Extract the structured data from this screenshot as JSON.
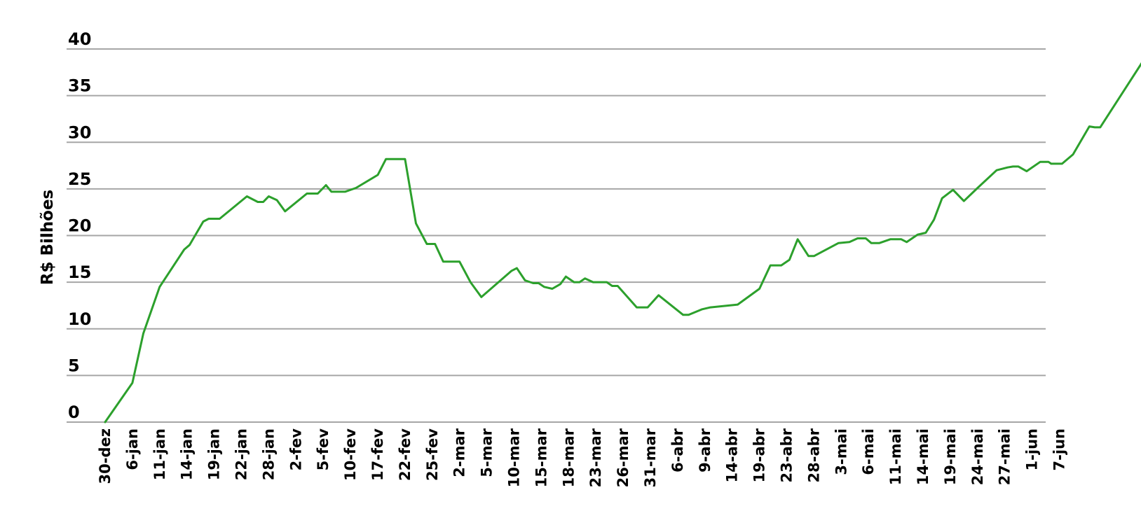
{
  "chart_data": {
    "type": "line",
    "title": "",
    "xlabel": "",
    "ylabel": "R$ Bilhões",
    "ylim": [
      0,
      40
    ],
    "yticks": [
      0,
      5,
      10,
      15,
      20,
      25,
      30,
      35,
      40
    ],
    "grid": true,
    "legend": "none",
    "colors": {
      "line": "#2ca02c",
      "grid": "#a6a6a6",
      "text": "#000000"
    },
    "categories": [
      "30-dez",
      "6-jan",
      "11-jan",
      "14-jan",
      "19-jan",
      "22-jan",
      "28-jan",
      "2-fev",
      "5-fev",
      "10-fev",
      "17-fev",
      "22-fev",
      "25-fev",
      "2-mar",
      "5-mar",
      "10-mar",
      "15-mar",
      "18-mar",
      "23-mar",
      "26-mar",
      "31-mar",
      "6-abr",
      "9-abr",
      "14-abr",
      "19-abr",
      "23-abr",
      "28-abr",
      "3-mai",
      "6-mai",
      "11-mai",
      "14-mai",
      "19-mai",
      "24-mai",
      "27-mai",
      "1-jun",
      "7-jun"
    ],
    "series": [
      {
        "values": [
          [
            0,
            0.0
          ],
          [
            1,
            4.2
          ],
          [
            1.4,
            9.5
          ],
          [
            2,
            14.5
          ],
          [
            2.9,
            18.5
          ],
          [
            3.1,
            19.0
          ],
          [
            3.6,
            21.5
          ],
          [
            3.8,
            21.8
          ],
          [
            4.2,
            21.8
          ],
          [
            5.2,
            24.2
          ],
          [
            5.6,
            23.6
          ],
          [
            5.8,
            23.6
          ],
          [
            6,
            24.2
          ],
          [
            6.3,
            23.8
          ],
          [
            6.6,
            22.6
          ],
          [
            7.4,
            24.5
          ],
          [
            7.8,
            24.5
          ],
          [
            8.1,
            25.4
          ],
          [
            8.3,
            24.7
          ],
          [
            8.8,
            24.7
          ],
          [
            9.2,
            25.1
          ],
          [
            10,
            26.5
          ],
          [
            10.3,
            28.2
          ],
          [
            11,
            28.2
          ],
          [
            11.4,
            21.3
          ],
          [
            11.8,
            19.1
          ],
          [
            12.1,
            19.1
          ],
          [
            12.4,
            17.2
          ],
          [
            13,
            17.2
          ],
          [
            13.4,
            15.0
          ],
          [
            13.8,
            13.4
          ],
          [
            14.9,
            16.2
          ],
          [
            15.1,
            16.5
          ],
          [
            15.4,
            15.2
          ],
          [
            15.7,
            14.9
          ],
          [
            15.9,
            14.9
          ],
          [
            16.1,
            14.5
          ],
          [
            16.4,
            14.3
          ],
          [
            16.7,
            14.8
          ],
          [
            16.9,
            15.6
          ],
          [
            17.2,
            15.0
          ],
          [
            17.4,
            15.0
          ],
          [
            17.6,
            15.4
          ],
          [
            17.9,
            15.0
          ],
          [
            18.4,
            15.0
          ],
          [
            18.6,
            14.6
          ],
          [
            18.8,
            14.6
          ],
          [
            19.5,
            12.3
          ],
          [
            19.9,
            12.3
          ],
          [
            20.3,
            13.6
          ],
          [
            21.2,
            11.5
          ],
          [
            21.4,
            11.5
          ],
          [
            21.9,
            12.1
          ],
          [
            22.2,
            12.3
          ],
          [
            23.2,
            12.6
          ],
          [
            24,
            14.3
          ],
          [
            24.4,
            16.8
          ],
          [
            24.8,
            16.8
          ],
          [
            25.1,
            17.4
          ],
          [
            25.4,
            19.6
          ],
          [
            25.8,
            17.8
          ],
          [
            26,
            17.8
          ],
          [
            26.9,
            19.2
          ],
          [
            27.3,
            19.3
          ],
          [
            27.6,
            19.7
          ],
          [
            27.9,
            19.7
          ],
          [
            28.1,
            19.2
          ],
          [
            28.4,
            19.2
          ],
          [
            28.8,
            19.6
          ],
          [
            29.2,
            19.6
          ],
          [
            29.4,
            19.3
          ],
          [
            29.8,
            20.1
          ],
          [
            30.1,
            20.3
          ],
          [
            30.4,
            21.7
          ],
          [
            30.7,
            24.0
          ],
          [
            31.1,
            24.9
          ],
          [
            31.5,
            23.7
          ],
          [
            32,
            25.1
          ],
          [
            32.7,
            27.0
          ],
          [
            33.1,
            27.3
          ],
          [
            33.3,
            27.4
          ],
          [
            33.5,
            27.4
          ],
          [
            33.8,
            26.9
          ],
          [
            34.3,
            27.9
          ],
          [
            34.6,
            27.9
          ],
          [
            34.7,
            27.7
          ],
          [
            35.1,
            27.7
          ],
          [
            35.5,
            28.7
          ],
          [
            36.1,
            31.7
          ],
          [
            36.3,
            31.6
          ],
          [
            36.5,
            31.6
          ],
          [
            38.2,
            39.3
          ]
        ]
      }
    ]
  }
}
